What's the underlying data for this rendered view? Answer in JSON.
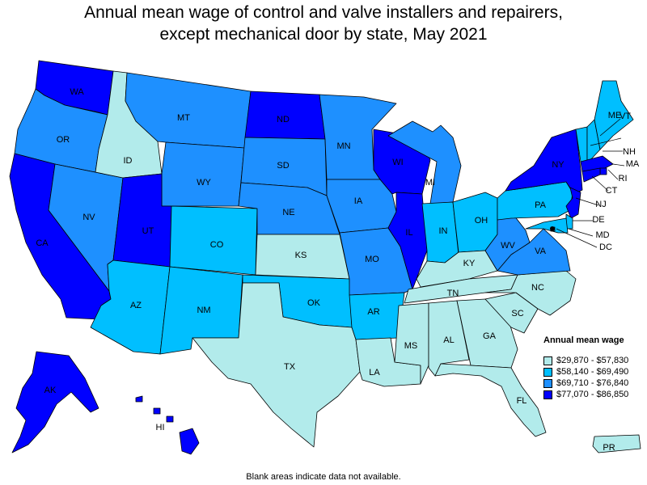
{
  "title_line1": "Annual mean wage of control and valve installers and repairers,",
  "title_line2": "except mechanical door by state, May 2021",
  "legend": {
    "title": "Annual mean wage",
    "items": [
      {
        "label": "$29,870 - $57,830",
        "color": "#b2ebeb"
      },
      {
        "label": "$58,140 - $69,490",
        "color": "#00bfff"
      },
      {
        "label": "$69,710 - $76,840",
        "color": "#1e90ff"
      },
      {
        "label": "$77,070 - $86,850",
        "color": "#0000ff"
      }
    ]
  },
  "footnote": "Blank areas indicate data not available.",
  "states": [
    {
      "abbr": "WA",
      "tier": 4
    },
    {
      "abbr": "OR",
      "tier": 3
    },
    {
      "abbr": "CA",
      "tier": 4
    },
    {
      "abbr": "NV",
      "tier": 3
    },
    {
      "abbr": "ID",
      "tier": 1
    },
    {
      "abbr": "MT",
      "tier": 3
    },
    {
      "abbr": "WY",
      "tier": 3
    },
    {
      "abbr": "UT",
      "tier": 4
    },
    {
      "abbr": "AZ",
      "tier": 2
    },
    {
      "abbr": "CO",
      "tier": 2
    },
    {
      "abbr": "NM",
      "tier": 2
    },
    {
      "abbr": "ND",
      "tier": 4
    },
    {
      "abbr": "SD",
      "tier": 3
    },
    {
      "abbr": "NE",
      "tier": 3
    },
    {
      "abbr": "KS",
      "tier": 1
    },
    {
      "abbr": "OK",
      "tier": 2
    },
    {
      "abbr": "TX",
      "tier": 1
    },
    {
      "abbr": "MN",
      "tier": 3
    },
    {
      "abbr": "IA",
      "tier": 3
    },
    {
      "abbr": "MO",
      "tier": 3
    },
    {
      "abbr": "AR",
      "tier": 2
    },
    {
      "abbr": "LA",
      "tier": 1
    },
    {
      "abbr": "WI",
      "tier": 4
    },
    {
      "abbr": "IL",
      "tier": 4
    },
    {
      "abbr": "MI",
      "tier": 3
    },
    {
      "abbr": "IN",
      "tier": 2
    },
    {
      "abbr": "OH",
      "tier": 2
    },
    {
      "abbr": "KY",
      "tier": 1
    },
    {
      "abbr": "TN",
      "tier": 1
    },
    {
      "abbr": "MS",
      "tier": 1
    },
    {
      "abbr": "AL",
      "tier": 1
    },
    {
      "abbr": "GA",
      "tier": 1
    },
    {
      "abbr": "FL",
      "tier": 1
    },
    {
      "abbr": "SC",
      "tier": 1
    },
    {
      "abbr": "NC",
      "tier": 1
    },
    {
      "abbr": "VA",
      "tier": 3
    },
    {
      "abbr": "WV",
      "tier": 3
    },
    {
      "abbr": "PA",
      "tier": 2
    },
    {
      "abbr": "NY",
      "tier": 4
    },
    {
      "abbr": "VT",
      "tier": 2
    },
    {
      "abbr": "NH",
      "tier": 2
    },
    {
      "abbr": "ME",
      "tier": 2
    },
    {
      "abbr": "MA",
      "tier": 4
    },
    {
      "abbr": "RI",
      "tier": 4
    },
    {
      "abbr": "CT",
      "tier": 4
    },
    {
      "abbr": "NJ",
      "tier": 4
    },
    {
      "abbr": "DE",
      "tier": 2
    },
    {
      "abbr": "MD",
      "tier": 2
    },
    {
      "abbr": "DC",
      "tier": 2
    },
    {
      "abbr": "AK",
      "tier": 4
    },
    {
      "abbr": "HI",
      "tier": 4
    },
    {
      "abbr": "PR",
      "tier": 1
    }
  ]
}
